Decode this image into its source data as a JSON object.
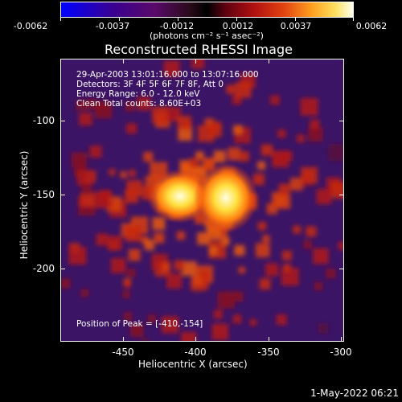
{
  "colorbar": {
    "tick_labels": [
      "-0.0062",
      "-0.0037",
      "-0.0012",
      "0.0012",
      "0.0037",
      "0.0062"
    ],
    "units": "(photons cm⁻² s⁻¹ asec⁻²)"
  },
  "plot": {
    "title": "Reconstructed RHESSI Image",
    "info_lines": [
      "29-Apr-2003 13:01:16.000 to 13:07:16.000",
      "Detectors: 3F 4F 5F 6F 7F 8F, Att 0",
      "Energy Range: 6.0 - 12.0 keV",
      "Clean     Total counts: 8.60E+03"
    ],
    "peak_text": "Position of Peak = [-410,-154]",
    "xlabel": "Heliocentric X (arcsec)",
    "ylabel": "Heliocentric Y (arcsec)",
    "x_ticks": [
      "-450",
      "-400",
      "-350",
      "-300"
    ],
    "y_ticks": [
      "-100",
      "-150",
      "-200"
    ]
  },
  "footer": {
    "timestamp": "1-May-2022 06:21"
  },
  "colors": {
    "background": "#000000",
    "image_low": "#3b1466",
    "image_high": "#ffffe0"
  }
}
